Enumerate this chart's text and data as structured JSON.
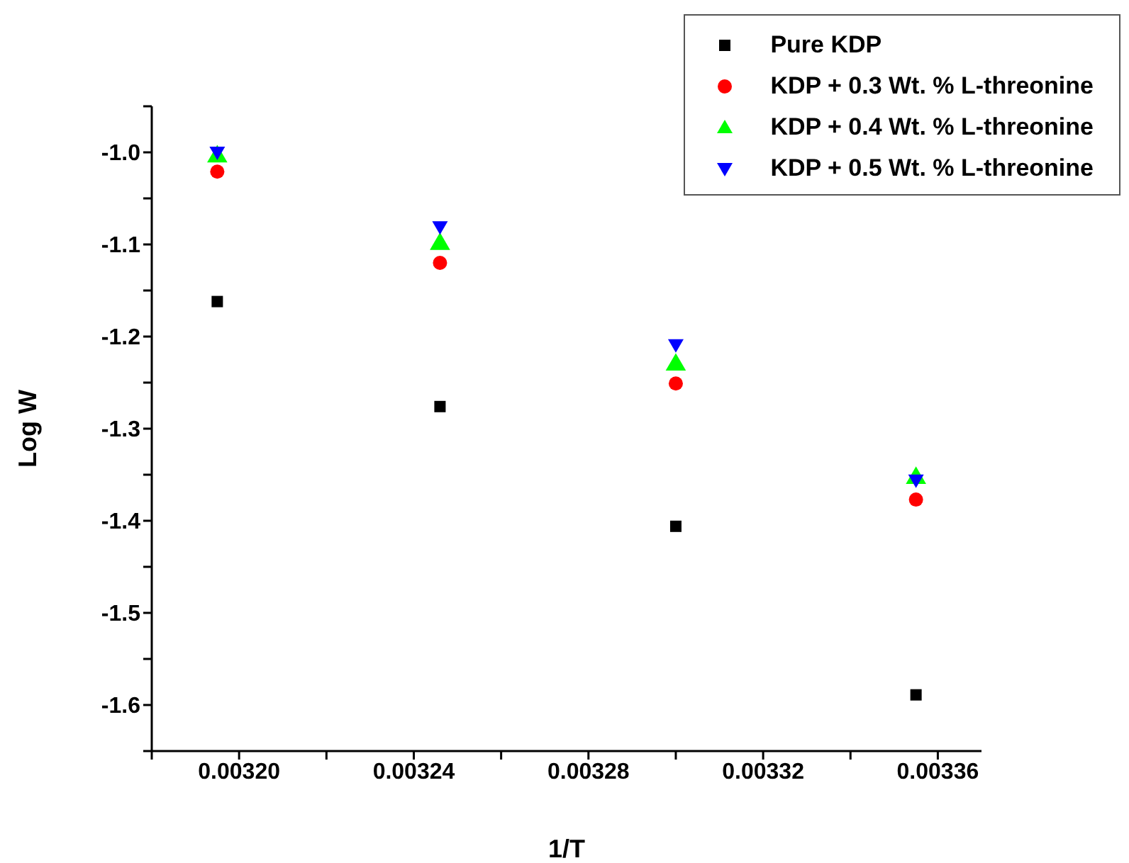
{
  "chart_data": {
    "type": "scatter",
    "xlabel": "1/T",
    "ylabel": "Log W",
    "x": [
      0.003195,
      0.003246,
      0.0033,
      0.003355
    ],
    "series": [
      {
        "name": "Pure KDP",
        "color": "#000000",
        "marker": "square",
        "values": [
          -1.162,
          -1.276,
          -1.406,
          -1.589
        ]
      },
      {
        "name": "KDP + 0.3 Wt. % L-threonine",
        "color": "#ff0000",
        "marker": "circle",
        "values": [
          -1.021,
          -1.12,
          -1.251,
          -1.377
        ]
      },
      {
        "name": "KDP + 0.4 Wt. % L-threonine",
        "color": "#00ff00",
        "marker": "triangle",
        "values": [
          -1.003,
          -1.098,
          -1.229,
          -1.352
        ]
      },
      {
        "name": "KDP + 0.5 Wt. % L-threonine",
        "color": "#0000ff",
        "marker": "triangle-down",
        "values": [
          -1.0,
          -1.081,
          -1.209,
          -1.356
        ]
      }
    ],
    "xlim": [
      0.00318,
      0.00337
    ],
    "xticks": [
      {
        "value": 0.00318,
        "label": null
      },
      {
        "value": 0.0032,
        "label": "0.00320"
      },
      {
        "value": 0.00322,
        "label": null
      },
      {
        "value": 0.00324,
        "label": "0.00324"
      },
      {
        "value": 0.00326,
        "label": null
      },
      {
        "value": 0.00328,
        "label": "0.00328"
      },
      {
        "value": 0.0033,
        "label": null
      },
      {
        "value": 0.00332,
        "label": "0.00332"
      },
      {
        "value": 0.00334,
        "label": null
      },
      {
        "value": 0.00336,
        "label": "0.00336"
      }
    ],
    "ylim": [
      -1.65,
      -0.95
    ],
    "yticks": [
      {
        "value": -0.95,
        "label": null
      },
      {
        "value": -1.0,
        "label": "-1.0"
      },
      {
        "value": -1.05,
        "label": null
      },
      -1.1,
      {
        "value": -1.15,
        "label": null
      },
      -1.2,
      {
        "value": -1.25,
        "label": null
      },
      -1.3,
      {
        "value": -1.35,
        "label": null
      },
      -1.4,
      {
        "value": -1.45,
        "label": null
      },
      -1.5,
      {
        "value": -1.55,
        "label": null
      },
      -1.6,
      {
        "value": -1.65,
        "label": null
      }
    ],
    "grid": false,
    "legend": "top right"
  }
}
